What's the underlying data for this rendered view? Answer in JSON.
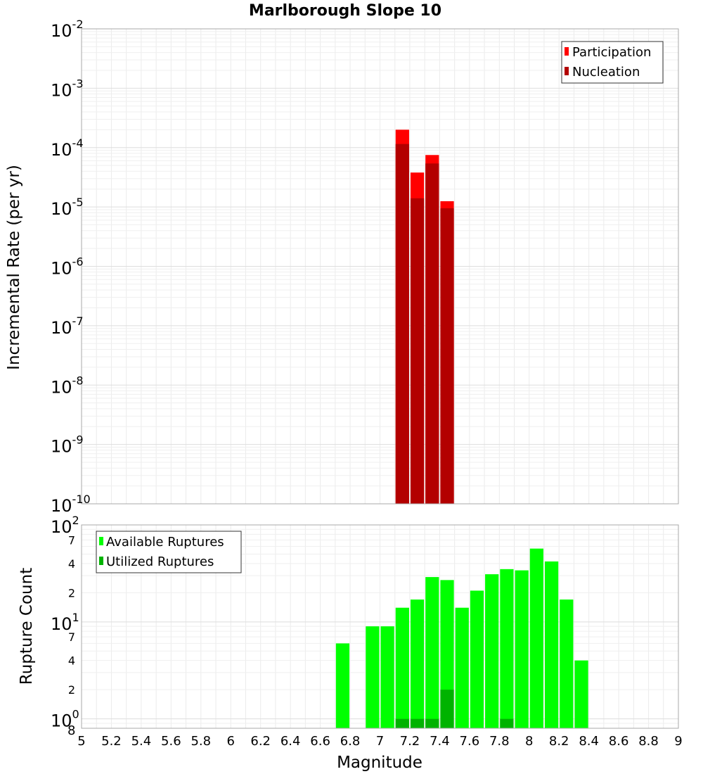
{
  "chart_data": {
    "type": "bar",
    "title": "Marlborough Slope 10",
    "xlabel": "Magnitude",
    "xlim": [
      5,
      9
    ],
    "x_ticks": [
      "5",
      "5.2",
      "5.4",
      "5.6",
      "5.8",
      "6",
      "6.2",
      "6.4",
      "6.6",
      "6.8",
      "7",
      "7.2",
      "7.4",
      "7.6",
      "7.8",
      "8",
      "8.2",
      "8.4",
      "8.6",
      "8.8",
      "9"
    ],
    "bin_width": 0.1,
    "panels": [
      {
        "id": "rate",
        "ylabel": "Incremental Rate (per yr)",
        "yscale": "log",
        "ylim": [
          1e-10,
          0.01
        ],
        "y_ticks": [
          {
            "value": 1e-10,
            "base": "10",
            "exp": "-10"
          },
          {
            "value": 1e-09,
            "base": "10",
            "exp": "-9"
          },
          {
            "value": 1e-08,
            "base": "10",
            "exp": "-8"
          },
          {
            "value": 1e-07,
            "base": "10",
            "exp": "-7"
          },
          {
            "value": 1e-06,
            "base": "10",
            "exp": "-6"
          },
          {
            "value": 1e-05,
            "base": "10",
            "exp": "-5"
          },
          {
            "value": 0.0001,
            "base": "10",
            "exp": "-4"
          },
          {
            "value": 0.001,
            "base": "10",
            "exp": "-3"
          },
          {
            "value": 0.01,
            "base": "10",
            "exp": "-2"
          }
        ],
        "legend_position": "top-right",
        "grid": true,
        "series": [
          {
            "name": "Participation",
            "color": "#ff0000",
            "points": [
              {
                "x": 7.15,
                "y": 0.0002
              },
              {
                "x": 7.25,
                "y": 3.8e-05
              },
              {
                "x": 7.35,
                "y": 7.5e-05
              },
              {
                "x": 7.45,
                "y": 1.25e-05
              }
            ]
          },
          {
            "name": "Nucleation",
            "color": "#b30000",
            "points": [
              {
                "x": 7.15,
                "y": 0.000115
              },
              {
                "x": 7.25,
                "y": 1.4e-05
              },
              {
                "x": 7.35,
                "y": 5.4e-05
              },
              {
                "x": 7.45,
                "y": 9.5e-06
              }
            ]
          }
        ]
      },
      {
        "id": "count",
        "ylabel": "Rupture Count",
        "yscale": "log",
        "ylim": [
          0.8,
          100
        ],
        "y_ticks": [
          {
            "value": 1,
            "base": "10",
            "exp": "0"
          },
          {
            "value": 2,
            "label": "2"
          },
          {
            "value": 4,
            "label": "4"
          },
          {
            "value": 7,
            "label": "7"
          },
          {
            "value": 10,
            "base": "10",
            "exp": "1"
          },
          {
            "value": 20,
            "label": "2"
          },
          {
            "value": 40,
            "label": "4"
          },
          {
            "value": 70,
            "label": "7"
          },
          {
            "value": 100,
            "base": "10",
            "exp": "2"
          }
        ],
        "bottom_label": "8",
        "legend_position": "top-left",
        "grid": true,
        "series": [
          {
            "name": "Available Ruptures",
            "color": "#00ff00",
            "points": [
              {
                "x": 6.75,
                "y": 6
              },
              {
                "x": 6.95,
                "y": 9
              },
              {
                "x": 7.05,
                "y": 9
              },
              {
                "x": 7.15,
                "y": 14
              },
              {
                "x": 7.25,
                "y": 17
              },
              {
                "x": 7.35,
                "y": 29
              },
              {
                "x": 7.45,
                "y": 27
              },
              {
                "x": 7.55,
                "y": 14
              },
              {
                "x": 7.65,
                "y": 21
              },
              {
                "x": 7.75,
                "y": 31
              },
              {
                "x": 7.85,
                "y": 35
              },
              {
                "x": 7.95,
                "y": 34
              },
              {
                "x": 8.05,
                "y": 57
              },
              {
                "x": 8.15,
                "y": 42
              },
              {
                "x": 8.25,
                "y": 17
              },
              {
                "x": 8.35,
                "y": 4
              }
            ]
          },
          {
            "name": "Utilized Ruptures",
            "color": "#00b300",
            "points": [
              {
                "x": 7.15,
                "y": 1
              },
              {
                "x": 7.25,
                "y": 1
              },
              {
                "x": 7.35,
                "y": 1
              },
              {
                "x": 7.45,
                "y": 2
              },
              {
                "x": 7.85,
                "y": 1
              }
            ]
          }
        ]
      }
    ]
  }
}
